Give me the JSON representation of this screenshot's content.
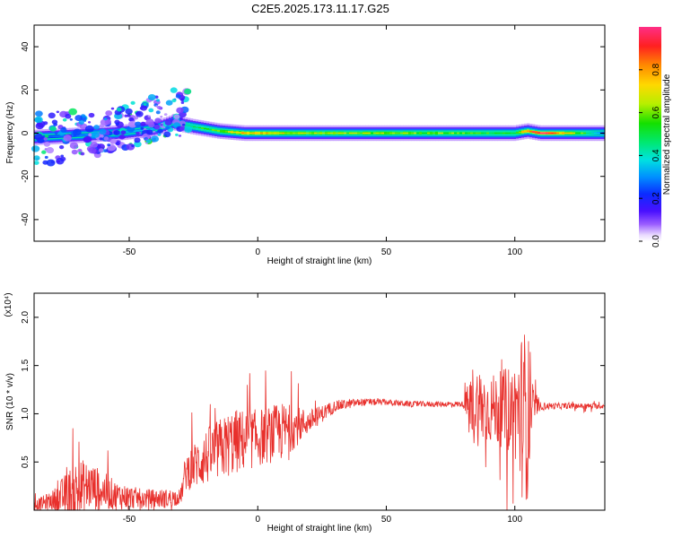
{
  "title": "C2E5.2025.173.11.17.G25",
  "chart_data": [
    {
      "type": "heatmap",
      "xlabel": "Height of straight line (km)",
      "ylabel": "Frequency (Hz)",
      "xlim": [
        -87,
        135
      ],
      "ylim": [
        -50,
        50
      ],
      "xticks": [
        -50,
        0,
        50,
        100
      ],
      "yticks": [
        -40,
        -20,
        0,
        20,
        40
      ],
      "colorbar": {
        "label": "Normalized spectral amplitude",
        "range": [
          0,
          1
        ],
        "ticks": [
          0.0,
          0.2,
          0.4,
          0.6,
          0.8
        ]
      },
      "ridge": {
        "x": [
          -87,
          -70,
          -55,
          -40,
          -33,
          -25,
          -15,
          -5,
          5,
          20,
          50,
          80,
          100,
          105,
          110,
          135
        ],
        "center_freq": [
          -2,
          -1,
          0,
          2,
          5,
          3,
          1,
          0,
          0,
          0,
          0,
          0,
          0,
          1,
          0,
          0
        ],
        "amplitude": [
          0.25,
          0.3,
          0.35,
          0.35,
          0.4,
          0.45,
          0.55,
          0.75,
          0.7,
          0.6,
          0.6,
          0.55,
          0.5,
          0.8,
          0.95,
          0.3
        ],
        "scatter_extent": [
          {
            "x": -87,
            "fmin": -15,
            "fmax": 10
          },
          {
            "x": -60,
            "fmin": -10,
            "fmax": 10
          },
          {
            "x": -45,
            "fmin": -5,
            "fmax": 17
          },
          {
            "x": -35,
            "fmin": -2,
            "fmax": 20
          }
        ]
      }
    },
    {
      "type": "line",
      "series_color": "#e8302c",
      "xlabel": "Height of straight line (km)",
      "ylabel": "SNR (10 * v/v)",
      "yscale_label": "(x10⁴)",
      "xlim": [
        -87,
        135
      ],
      "ylim": [
        0,
        2.25
      ],
      "xticks": [
        -50,
        0,
        50,
        100
      ],
      "yticks": [
        0.5,
        1.0,
        1.5,
        2.0
      ],
      "envelope": {
        "x": [
          -87,
          -80,
          -70,
          -65,
          -55,
          -45,
          -35,
          -30,
          -28,
          -20,
          -10,
          0,
          10,
          20,
          30,
          40,
          50,
          60,
          70,
          80,
          84,
          90,
          95,
          100,
          103,
          105,
          107,
          110,
          120,
          135
        ],
        "base": [
          0.05,
          0.1,
          0.2,
          0.25,
          0.15,
          0.12,
          0.12,
          0.14,
          0.4,
          0.55,
          0.7,
          0.75,
          0.82,
          0.92,
          1.08,
          1.12,
          1.12,
          1.1,
          1.1,
          1.1,
          1.1,
          1.05,
          1.05,
          1.05,
          1.0,
          1.0,
          1.1,
          1.08,
          1.08,
          1.08
        ],
        "noise": [
          0.05,
          0.1,
          0.35,
          0.25,
          0.15,
          0.1,
          0.1,
          0.08,
          0.2,
          0.3,
          0.35,
          0.3,
          0.3,
          0.12,
          0.06,
          0.04,
          0.03,
          0.03,
          0.03,
          0.03,
          0.45,
          0.35,
          0.4,
          0.5,
          0.9,
          0.9,
          0.2,
          0.04,
          0.03,
          0.03
        ]
      }
    }
  ]
}
